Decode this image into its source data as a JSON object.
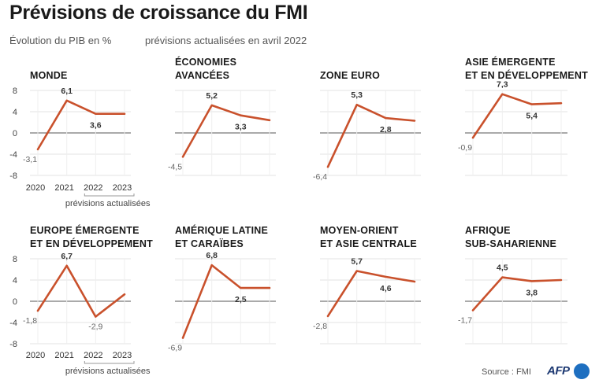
{
  "title": "Prévisions de croissance du FMI",
  "subtitle_left": "Évolution du PIB en %",
  "subtitle_right": "prévisions actualisées en avril 2022",
  "source": "Source : FMI",
  "logo_text": "AFP",
  "line_color": "#c9512c",
  "chart_data": [
    {
      "type": "line",
      "title_lines": [
        "MONDE"
      ],
      "x": [
        "2020",
        "2021",
        "2022",
        "2023"
      ],
      "values": [
        -3.1,
        6.1,
        3.6,
        3.6
      ],
      "value_labels": [
        "-3,1",
        "6,1",
        "3,6",
        ""
      ],
      "ylim": [
        -8,
        8
      ],
      "yticks": [
        "8",
        "4",
        "0",
        "-4",
        "-8"
      ],
      "grid": true,
      "show_x_labels": true,
      "bracket_label": "prévisions actualisées"
    },
    {
      "type": "line",
      "title_lines": [
        "ÉCONOMIES",
        "AVANCÉES"
      ],
      "x": [
        "2020",
        "2021",
        "2022",
        "2023"
      ],
      "values": [
        -4.5,
        5.2,
        3.3,
        2.4
      ],
      "value_labels": [
        "-4,5",
        "5,2",
        "3,3",
        ""
      ],
      "ylim": [
        -8,
        8
      ],
      "grid": true
    },
    {
      "type": "line",
      "title_lines": [
        "ZONE EURO"
      ],
      "x": [
        "2020",
        "2021",
        "2022",
        "2023"
      ],
      "values": [
        -6.4,
        5.3,
        2.8,
        2.3
      ],
      "value_labels": [
        "-6,4",
        "5,3",
        "2,8",
        ""
      ],
      "ylim": [
        -8,
        8
      ],
      "grid": true
    },
    {
      "type": "line",
      "title_lines": [
        "ASIE ÉMERGENTE",
        "ET EN DÉVELOPPEMENT"
      ],
      "x": [
        "2020",
        "2021",
        "2022",
        "2023"
      ],
      "values": [
        -0.9,
        7.3,
        5.4,
        5.6
      ],
      "value_labels": [
        "-0,9",
        "7,3",
        "5,4",
        ""
      ],
      "ylim": [
        -8,
        8
      ],
      "grid": true
    },
    {
      "type": "line",
      "title_lines": [
        "EUROPE ÉMERGENTE",
        "ET EN DÉVELOPPEMENT"
      ],
      "x": [
        "2020",
        "2021",
        "2022",
        "2023"
      ],
      "values": [
        -1.8,
        6.7,
        -2.9,
        1.3
      ],
      "value_labels": [
        "-1,8",
        "6,7",
        "-2,9",
        ""
      ],
      "ylim": [
        -8,
        8
      ],
      "yticks": [
        "8",
        "4",
        "0",
        "-4",
        "-8"
      ],
      "grid": true,
      "show_x_labels": true,
      "bracket_label": "prévisions actualisées"
    },
    {
      "type": "line",
      "title_lines": [
        "AMÉRIQUE LATINE",
        "ET CARAÏBES"
      ],
      "x": [
        "2020",
        "2021",
        "2022",
        "2023"
      ],
      "values": [
        -6.9,
        6.8,
        2.5,
        2.5
      ],
      "value_labels": [
        "-6,9",
        "6,8",
        "2,5",
        ""
      ],
      "ylim": [
        -8,
        8
      ],
      "grid": true
    },
    {
      "type": "line",
      "title_lines": [
        "MOYEN-ORIENT",
        "ET ASIE CENTRALE"
      ],
      "x": [
        "2020",
        "2021",
        "2022",
        "2023"
      ],
      "values": [
        -2.8,
        5.7,
        4.6,
        3.7
      ],
      "value_labels": [
        "-2,8",
        "5,7",
        "4,6",
        ""
      ],
      "ylim": [
        -8,
        8
      ],
      "grid": true
    },
    {
      "type": "line",
      "title_lines": [
        "AFRIQUE",
        "SUB-SAHARIENNE"
      ],
      "x": [
        "2020",
        "2021",
        "2022",
        "2023"
      ],
      "values": [
        -1.7,
        4.5,
        3.8,
        4.0
      ],
      "value_labels": [
        "-1,7",
        "4,5",
        "3,8",
        ""
      ],
      "ylim": [
        -8,
        8
      ],
      "grid": true
    }
  ]
}
